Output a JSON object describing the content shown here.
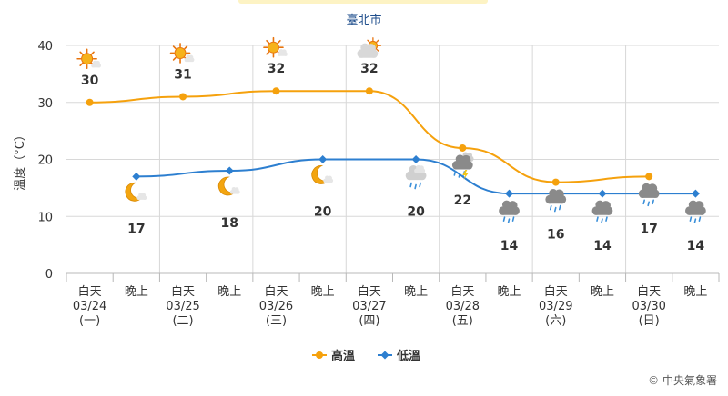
{
  "title": "臺北市",
  "credit": "© 中央氣象署",
  "colors": {
    "high": "#f5a10d",
    "low": "#2d7fd0",
    "weekend": "#c00000",
    "grid": "#d8d8d8",
    "text": "#333333",
    "title": "#1f4e8c"
  },
  "chart_data": {
    "type": "line",
    "title": "臺北市",
    "ylabel": "溫度（°C）",
    "ylim": [
      0,
      40
    ],
    "yticks": [
      0,
      10,
      20,
      30,
      40
    ],
    "x": [
      {
        "period": "白天",
        "date": "03/24",
        "weekday": "(一)",
        "weekend": false
      },
      {
        "period": "晚上"
      },
      {
        "period": "白天",
        "date": "03/25",
        "weekday": "(二)",
        "weekend": false
      },
      {
        "period": "晚上"
      },
      {
        "period": "白天",
        "date": "03/26",
        "weekday": "(三)",
        "weekend": false
      },
      {
        "period": "晚上"
      },
      {
        "period": "白天",
        "date": "03/27",
        "weekday": "(四)",
        "weekend": false
      },
      {
        "period": "晚上"
      },
      {
        "period": "白天",
        "date": "03/28",
        "weekday": "(五)",
        "weekend": false
      },
      {
        "period": "晚上"
      },
      {
        "period": "白天",
        "date": "03/29",
        "weekday": "(六)",
        "weekend": true
      },
      {
        "period": "晚上"
      },
      {
        "period": "白天",
        "date": "03/30",
        "weekday": "(日)",
        "weekend": true
      },
      {
        "period": "晚上"
      }
    ],
    "series": [
      {
        "name": "高溫",
        "values": [
          30,
          null,
          31,
          null,
          32,
          null,
          32,
          null,
          22,
          null,
          16,
          null,
          17,
          null
        ]
      },
      {
        "name": "低溫",
        "values": [
          null,
          17,
          null,
          18,
          null,
          20,
          null,
          20,
          null,
          14,
          null,
          14,
          null,
          14
        ]
      }
    ],
    "icons": [
      "sunny-icon",
      "clear-night-icon",
      "sunny-icon",
      "clear-night-icon",
      "sunny-icon",
      "clear-night-icon",
      "partly-cloudy-icon",
      "cloudy-rain-icon",
      "thunder-rain-icon",
      "rain-icon",
      "rain-icon",
      "rain-icon",
      "rain-icon",
      "rain-icon"
    ],
    "legend": {
      "position": "bottom",
      "items": [
        "高溫",
        "低溫"
      ]
    },
    "grid": true
  }
}
